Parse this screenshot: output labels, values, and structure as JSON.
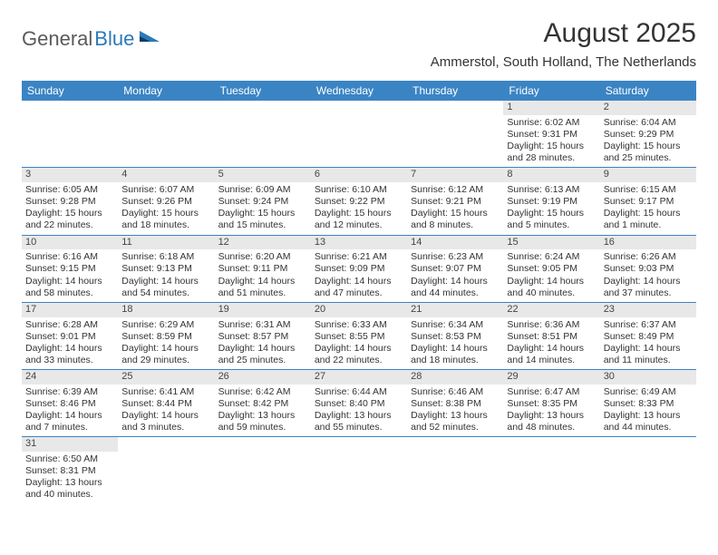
{
  "logo": {
    "part1": "General",
    "part2": "Blue"
  },
  "title": "August 2025",
  "location": "Ammerstol, South Holland, The Netherlands",
  "header_bg": "#3b84c4",
  "header_fg": "#ffffff",
  "daynum_bg": "#e8e8e8",
  "border_color": "#3b84c4",
  "days": [
    "Sunday",
    "Monday",
    "Tuesday",
    "Wednesday",
    "Thursday",
    "Friday",
    "Saturday"
  ],
  "cells": [
    [
      null,
      null,
      null,
      null,
      null,
      {
        "n": "1",
        "sr": "Sunrise: 6:02 AM",
        "ss": "Sunset: 9:31 PM",
        "d1": "Daylight: 15 hours",
        "d2": "and 28 minutes."
      },
      {
        "n": "2",
        "sr": "Sunrise: 6:04 AM",
        "ss": "Sunset: 9:29 PM",
        "d1": "Daylight: 15 hours",
        "d2": "and 25 minutes."
      }
    ],
    [
      {
        "n": "3",
        "sr": "Sunrise: 6:05 AM",
        "ss": "Sunset: 9:28 PM",
        "d1": "Daylight: 15 hours",
        "d2": "and 22 minutes."
      },
      {
        "n": "4",
        "sr": "Sunrise: 6:07 AM",
        "ss": "Sunset: 9:26 PM",
        "d1": "Daylight: 15 hours",
        "d2": "and 18 minutes."
      },
      {
        "n": "5",
        "sr": "Sunrise: 6:09 AM",
        "ss": "Sunset: 9:24 PM",
        "d1": "Daylight: 15 hours",
        "d2": "and 15 minutes."
      },
      {
        "n": "6",
        "sr": "Sunrise: 6:10 AM",
        "ss": "Sunset: 9:22 PM",
        "d1": "Daylight: 15 hours",
        "d2": "and 12 minutes."
      },
      {
        "n": "7",
        "sr": "Sunrise: 6:12 AM",
        "ss": "Sunset: 9:21 PM",
        "d1": "Daylight: 15 hours",
        "d2": "and 8 minutes."
      },
      {
        "n": "8",
        "sr": "Sunrise: 6:13 AM",
        "ss": "Sunset: 9:19 PM",
        "d1": "Daylight: 15 hours",
        "d2": "and 5 minutes."
      },
      {
        "n": "9",
        "sr": "Sunrise: 6:15 AM",
        "ss": "Sunset: 9:17 PM",
        "d1": "Daylight: 15 hours",
        "d2": "and 1 minute."
      }
    ],
    [
      {
        "n": "10",
        "sr": "Sunrise: 6:16 AM",
        "ss": "Sunset: 9:15 PM",
        "d1": "Daylight: 14 hours",
        "d2": "and 58 minutes."
      },
      {
        "n": "11",
        "sr": "Sunrise: 6:18 AM",
        "ss": "Sunset: 9:13 PM",
        "d1": "Daylight: 14 hours",
        "d2": "and 54 minutes."
      },
      {
        "n": "12",
        "sr": "Sunrise: 6:20 AM",
        "ss": "Sunset: 9:11 PM",
        "d1": "Daylight: 14 hours",
        "d2": "and 51 minutes."
      },
      {
        "n": "13",
        "sr": "Sunrise: 6:21 AM",
        "ss": "Sunset: 9:09 PM",
        "d1": "Daylight: 14 hours",
        "d2": "and 47 minutes."
      },
      {
        "n": "14",
        "sr": "Sunrise: 6:23 AM",
        "ss": "Sunset: 9:07 PM",
        "d1": "Daylight: 14 hours",
        "d2": "and 44 minutes."
      },
      {
        "n": "15",
        "sr": "Sunrise: 6:24 AM",
        "ss": "Sunset: 9:05 PM",
        "d1": "Daylight: 14 hours",
        "d2": "and 40 minutes."
      },
      {
        "n": "16",
        "sr": "Sunrise: 6:26 AM",
        "ss": "Sunset: 9:03 PM",
        "d1": "Daylight: 14 hours",
        "d2": "and 37 minutes."
      }
    ],
    [
      {
        "n": "17",
        "sr": "Sunrise: 6:28 AM",
        "ss": "Sunset: 9:01 PM",
        "d1": "Daylight: 14 hours",
        "d2": "and 33 minutes."
      },
      {
        "n": "18",
        "sr": "Sunrise: 6:29 AM",
        "ss": "Sunset: 8:59 PM",
        "d1": "Daylight: 14 hours",
        "d2": "and 29 minutes."
      },
      {
        "n": "19",
        "sr": "Sunrise: 6:31 AM",
        "ss": "Sunset: 8:57 PM",
        "d1": "Daylight: 14 hours",
        "d2": "and 25 minutes."
      },
      {
        "n": "20",
        "sr": "Sunrise: 6:33 AM",
        "ss": "Sunset: 8:55 PM",
        "d1": "Daylight: 14 hours",
        "d2": "and 22 minutes."
      },
      {
        "n": "21",
        "sr": "Sunrise: 6:34 AM",
        "ss": "Sunset: 8:53 PM",
        "d1": "Daylight: 14 hours",
        "d2": "and 18 minutes."
      },
      {
        "n": "22",
        "sr": "Sunrise: 6:36 AM",
        "ss": "Sunset: 8:51 PM",
        "d1": "Daylight: 14 hours",
        "d2": "and 14 minutes."
      },
      {
        "n": "23",
        "sr": "Sunrise: 6:37 AM",
        "ss": "Sunset: 8:49 PM",
        "d1": "Daylight: 14 hours",
        "d2": "and 11 minutes."
      }
    ],
    [
      {
        "n": "24",
        "sr": "Sunrise: 6:39 AM",
        "ss": "Sunset: 8:46 PM",
        "d1": "Daylight: 14 hours",
        "d2": "and 7 minutes."
      },
      {
        "n": "25",
        "sr": "Sunrise: 6:41 AM",
        "ss": "Sunset: 8:44 PM",
        "d1": "Daylight: 14 hours",
        "d2": "and 3 minutes."
      },
      {
        "n": "26",
        "sr": "Sunrise: 6:42 AM",
        "ss": "Sunset: 8:42 PM",
        "d1": "Daylight: 13 hours",
        "d2": "and 59 minutes."
      },
      {
        "n": "27",
        "sr": "Sunrise: 6:44 AM",
        "ss": "Sunset: 8:40 PM",
        "d1": "Daylight: 13 hours",
        "d2": "and 55 minutes."
      },
      {
        "n": "28",
        "sr": "Sunrise: 6:46 AM",
        "ss": "Sunset: 8:38 PM",
        "d1": "Daylight: 13 hours",
        "d2": "and 52 minutes."
      },
      {
        "n": "29",
        "sr": "Sunrise: 6:47 AM",
        "ss": "Sunset: 8:35 PM",
        "d1": "Daylight: 13 hours",
        "d2": "and 48 minutes."
      },
      {
        "n": "30",
        "sr": "Sunrise: 6:49 AM",
        "ss": "Sunset: 8:33 PM",
        "d1": "Daylight: 13 hours",
        "d2": "and 44 minutes."
      }
    ],
    [
      {
        "n": "31",
        "sr": "Sunrise: 6:50 AM",
        "ss": "Sunset: 8:31 PM",
        "d1": "Daylight: 13 hours",
        "d2": "and 40 minutes."
      },
      null,
      null,
      null,
      null,
      null,
      null
    ]
  ]
}
